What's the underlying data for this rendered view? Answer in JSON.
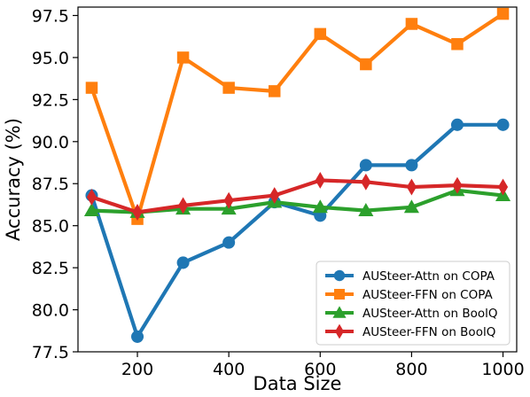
{
  "chart_data": {
    "type": "line",
    "title": "",
    "xlabel": "Data Size",
    "ylabel": "Accuracy (%)",
    "x": [
      100,
      200,
      300,
      400,
      500,
      600,
      700,
      800,
      900,
      1000
    ],
    "xlim": [
      70,
      1030
    ],
    "ylim": [
      77.5,
      98.0
    ],
    "xticks": [
      200,
      400,
      600,
      800,
      1000
    ],
    "xtick_labels": [
      "200",
      "400",
      "600",
      "800",
      "1000"
    ],
    "yticks": [
      77.5,
      80.0,
      82.5,
      85.0,
      87.5,
      90.0,
      92.5,
      95.0,
      97.5
    ],
    "ytick_labels": [
      "77.5",
      "80.0",
      "82.5",
      "85.0",
      "87.5",
      "90.0",
      "92.5",
      "95.0",
      "97.5"
    ],
    "grid": false,
    "legend_position": "bottom-right",
    "series": [
      {
        "name": "AUSteer-Attn on COPA",
        "color": "#1f77b4",
        "marker": "circle",
        "values": [
          86.8,
          78.4,
          82.8,
          84.0,
          86.4,
          85.6,
          88.6,
          88.6,
          91.0,
          91.0
        ]
      },
      {
        "name": "AUSteer-FFN on COPA",
        "color": "#ff7f0e",
        "marker": "square",
        "values": [
          93.2,
          85.4,
          95.0,
          93.2,
          93.0,
          96.4,
          94.6,
          97.0,
          95.8,
          97.6
        ]
      },
      {
        "name": "AUSteer-Attn on BoolQ",
        "color": "#2ca02c",
        "marker": "triangle",
        "values": [
          85.9,
          85.8,
          86.0,
          86.0,
          86.4,
          86.1,
          85.9,
          86.1,
          87.1,
          86.8
        ]
      },
      {
        "name": "AUSteer-FFN on BoolQ",
        "color": "#d62728",
        "marker": "diamond",
        "values": [
          86.7,
          85.8,
          86.2,
          86.5,
          86.8,
          87.7,
          87.6,
          87.3,
          87.4,
          87.3
        ]
      }
    ]
  }
}
